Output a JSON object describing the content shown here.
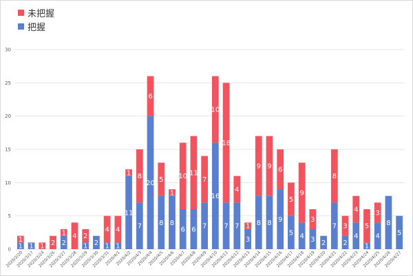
{
  "legend": {
    "unknown_label": "未把握",
    "known_label": "把握"
  },
  "colors": {
    "unknown": "#f2545f",
    "known": "#5b7fcf",
    "grid": "#e5e5e5"
  },
  "chart_data": {
    "type": "bar",
    "stacked": true,
    "title": "",
    "xlabel": "",
    "ylabel": "",
    "ylim": [
      0,
      30
    ],
    "yticks": [
      0,
      5,
      10,
      15,
      20,
      25,
      30
    ],
    "grid": true,
    "legend_position": "top-left",
    "categories": [
      "2020/2/20",
      "2020/3/17",
      "2020/3/24",
      "2020/3/26",
      "2020/3/27",
      "2020/3/28",
      "2020/3/29",
      "2020/3/30",
      "2020/3/31",
      "2020/4/1",
      "2020/4/2",
      "2020/4/3",
      "2020/4/4",
      "2020/4/5",
      "2020/4/6",
      "2020/4/7",
      "2020/4/8",
      "2020/4/9",
      "2020/4/10",
      "2020/4/11",
      "2020/4/12",
      "2020/4/13",
      "2020/4/14",
      "2020/4/15",
      "2020/4/16",
      "2020/4/17",
      "2020/4/18",
      "2020/4/19",
      "2020/4/20",
      "2020/4/21",
      "2020/4/22",
      "2020/4/23",
      "2020/4/24",
      "2020/4/25",
      "2020/4/26",
      "2020/4/27"
    ],
    "series": [
      {
        "name": "把握",
        "values": [
          1,
          1,
          0,
          0,
          2,
          0,
          1,
          2,
          1,
          1,
          11,
          7,
          20,
          8,
          8,
          6,
          6,
          7,
          16,
          7,
          7,
          3,
          8,
          8,
          9,
          5,
          4,
          3,
          2,
          7,
          2,
          4,
          1,
          4,
          8,
          5
        ]
      },
      {
        "name": "未把握",
        "values": [
          1,
          0,
          1,
          2,
          1,
          4,
          2,
          0,
          4,
          4,
          1,
          8,
          6,
          5,
          1,
          10,
          11,
          7,
          10,
          18,
          4,
          1,
          9,
          9,
          6,
          5,
          9,
          3,
          0,
          8,
          3,
          4,
          5,
          3,
          0,
          0
        ]
      }
    ]
  }
}
